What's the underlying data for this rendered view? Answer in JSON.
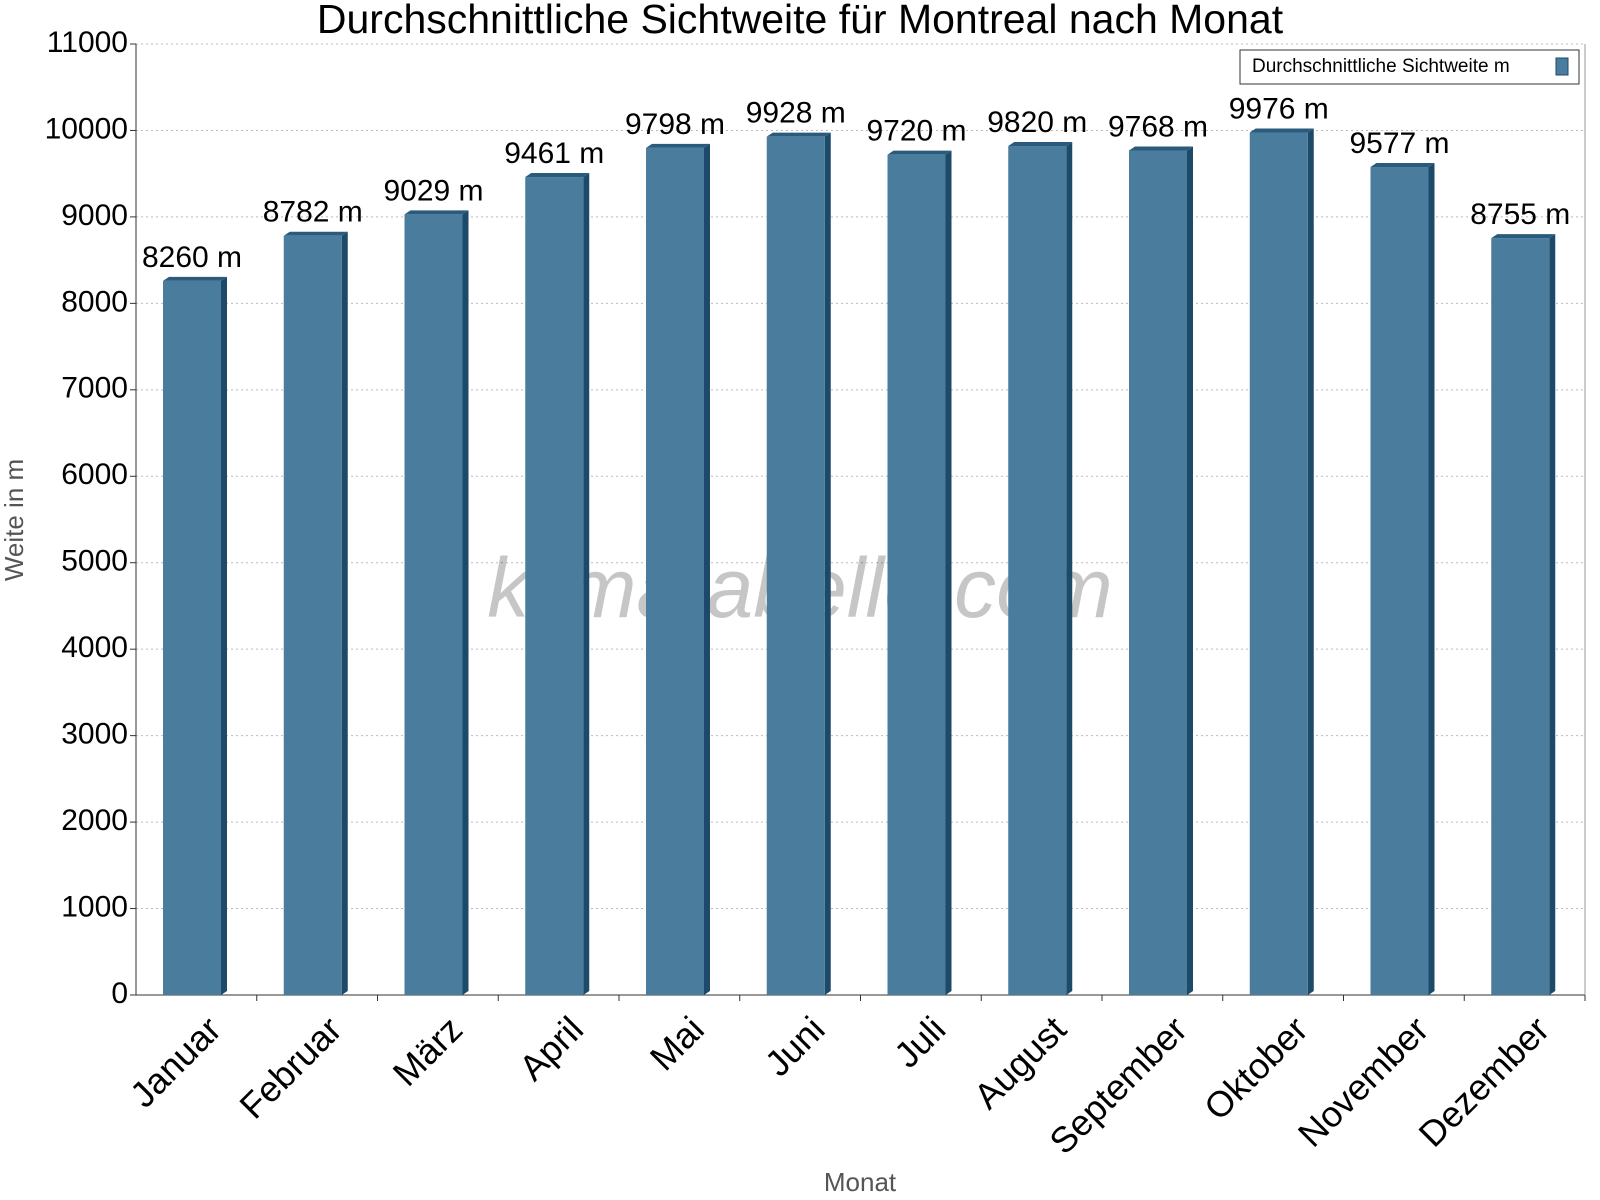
{
  "chart_data": {
    "type": "bar",
    "title": "Durchschnittliche Sichtweite für Montreal nach Monat",
    "x_label": "Monat",
    "y_label": "Weite in m",
    "watermark": "klimatabelle.com",
    "categories": [
      "Januar",
      "Februar",
      "März",
      "April",
      "Mai",
      "Juni",
      "Juli",
      "August",
      "September",
      "Oktober",
      "November",
      "Dezember"
    ],
    "series": [
      {
        "name": "Durchschnittliche Sichtweite m",
        "color": "#4a7c9e",
        "values": [
          8260,
          8782,
          9029,
          9461,
          9798,
          9928,
          9720,
          9820,
          9768,
          9976,
          9577,
          8755
        ],
        "value_labels": [
          "8260 m",
          "8782 m",
          "9029 m",
          "9461 m",
          "9798 m",
          "9928 m",
          "9720 m",
          "9820 m",
          "9768 m",
          "9976 m",
          "9577 m",
          "8755 m"
        ]
      }
    ],
    "ylim": [
      0,
      11000
    ],
    "yticks": [
      0,
      1000,
      2000,
      3000,
      4000,
      5000,
      6000,
      7000,
      8000,
      9000,
      10000,
      11000
    ],
    "grid": true,
    "legend": "top-right"
  }
}
